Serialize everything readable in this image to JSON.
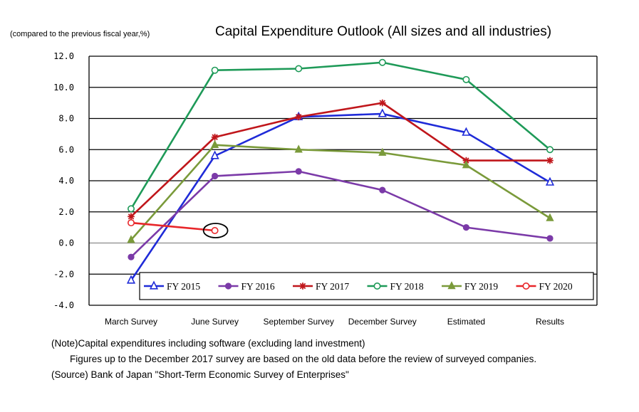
{
  "chart_data": {
    "type": "line",
    "title": "Capital Expenditure Outlook (All sizes and all industries)",
    "ylabel": "(compared to the previous fiscal year,%)",
    "xlabel": "",
    "categories": [
      "March Survey",
      "June Survey",
      "September Survey",
      "December Survey",
      "Estimated",
      "Results"
    ],
    "ylim": [
      -4.0,
      12.0
    ],
    "yticks": [
      "12.0",
      "10.0",
      "8.0",
      "6.0",
      "4.0",
      "2.0",
      "0.0",
      "-2.0",
      "-4.0"
    ],
    "grid": true,
    "legend_position": "bottom-inside",
    "series": [
      {
        "name": "FY 2015",
        "color": "#1f2bd8",
        "marker": "open-triangle",
        "values": [
          -2.4,
          5.6,
          8.1,
          8.3,
          7.1,
          3.9
        ]
      },
      {
        "name": "FY 2016",
        "color": "#7b3aa8",
        "marker": "filled-circle",
        "values": [
          -0.9,
          4.3,
          4.6,
          3.4,
          1.0,
          0.3
        ]
      },
      {
        "name": "FY 2017",
        "color": "#c0161b",
        "marker": "star",
        "values": [
          1.7,
          6.8,
          8.1,
          9.0,
          5.3,
          5.3
        ]
      },
      {
        "name": "FY 2018",
        "color": "#1e9a58",
        "marker": "open-circle",
        "values": [
          2.2,
          11.1,
          11.2,
          11.6,
          10.5,
          6.0
        ]
      },
      {
        "name": "FY 2019",
        "color": "#7a9a3a",
        "marker": "filled-triangle",
        "values": [
          0.2,
          6.3,
          6.0,
          5.8,
          5.0,
          1.6
        ]
      },
      {
        "name": "FY 2020",
        "color": "#e8262a",
        "marker": "open-circle",
        "values": [
          1.3,
          0.8,
          null,
          null,
          null,
          null
        ]
      }
    ],
    "annotations": [
      "ellipse around FY 2020 June Survey point"
    ]
  },
  "notes": {
    "note_line": "(Note)Capital expenditures including software (excluding land investment)",
    "note_line2": "Figures up to the December 2017 survey are based on the old data before the review of surveyed companies.",
    "source_line": "(Source) Bank of Japan \"Short-Term Economic Survey of Enterprises\""
  }
}
